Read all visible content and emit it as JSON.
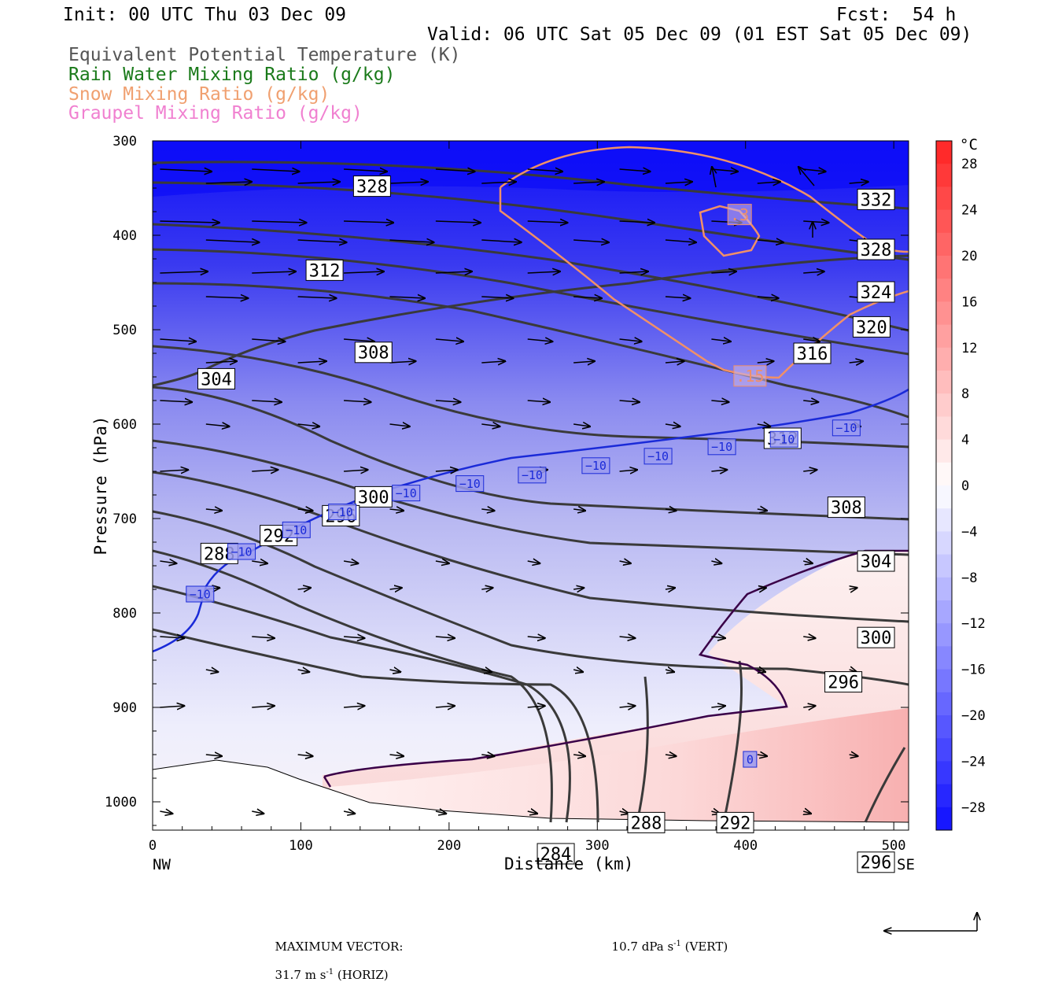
{
  "header": {
    "init": "Init: 00 UTC Thu 03 Dec 09",
    "fcst": "Fcst:  54 h",
    "valid": "Valid: 06 UTC Sat 05 Dec 09 (01 EST Sat 05 Dec 09)",
    "legend": [
      {
        "label": "Equivalent Potential Temperature (K)",
        "color": "#555555"
      },
      {
        "label": "Rain Water Mixing Ratio (g/kg)",
        "color": "#1a7a1a"
      },
      {
        "label": "Snow Mixing Ratio (g/kg)",
        "color": "#f0a070"
      },
      {
        "label": "Graupel Mixing Ratio (g/kg)",
        "color": "#f080d0"
      }
    ]
  },
  "chart_data": {
    "type": "contour",
    "xlabel": "Distance (km)",
    "ylabel": "Pressure (hPa)",
    "xlim": [
      0,
      510
    ],
    "ylim": [
      1030,
      300
    ],
    "x_ticks": [
      0,
      100,
      200,
      300,
      400,
      500
    ],
    "y_ticks": [
      300,
      400,
      500,
      600,
      700,
      800,
      900,
      1000
    ],
    "x_end_labels": {
      "left": "NW",
      "right": "SE"
    },
    "colorbar": {
      "unit": "°C",
      "ticks": [
        "28",
        "24",
        "20",
        "16",
        "12",
        "8",
        "4",
        "0",
        "−4",
        "−8",
        "−12",
        "−16",
        "−20",
        "−24",
        "−28"
      ],
      "min": -30,
      "max": 30
    },
    "theta_e_labels": [
      {
        "text": "328",
        "x": 148,
        "p": 348
      },
      {
        "text": "332",
        "x": 488,
        "p": 362
      },
      {
        "text": "328",
        "x": 488,
        "p": 415
      },
      {
        "text": "324",
        "x": 488,
        "p": 460
      },
      {
        "text": "320",
        "x": 485,
        "p": 497
      },
      {
        "text": "316",
        "x": 445,
        "p": 525
      },
      {
        "text": "312",
        "x": 116,
        "p": 437
      },
      {
        "text": "308",
        "x": 149,
        "p": 524
      },
      {
        "text": "304",
        "x": 43,
        "p": 552
      },
      {
        "text": "312",
        "x": 425,
        "p": 615
      },
      {
        "text": "308",
        "x": 468,
        "p": 688
      },
      {
        "text": "300",
        "x": 149,
        "p": 677
      },
      {
        "text": "296",
        "x": 127,
        "p": 697
      },
      {
        "text": "292",
        "x": 85,
        "p": 718
      },
      {
        "text": "288",
        "x": 45,
        "p": 737
      },
      {
        "text": "304",
        "x": 488,
        "p": 745
      },
      {
        "text": "300",
        "x": 488,
        "p": 826
      },
      {
        "text": "296",
        "x": 466,
        "p": 873
      },
      {
        "text": "288",
        "x": 333,
        "p": 1022
      },
      {
        "text": "292",
        "x": 393,
        "p": 1022
      },
      {
        "text": "284",
        "x": 272,
        "p": 1055
      },
      {
        "text": "296",
        "x": 488,
        "p": 1064
      }
    ],
    "temp_labels": [
      {
        "text": "−10",
        "x": 32,
        "p": 780
      },
      {
        "text": "−10",
        "x": 60,
        "p": 735
      },
      {
        "text": "−10",
        "x": 97,
        "p": 712
      },
      {
        "text": "−10",
        "x": 128,
        "p": 693
      },
      {
        "text": "−10",
        "x": 171,
        "p": 673
      },
      {
        "text": "−10",
        "x": 214,
        "p": 663
      },
      {
        "text": "−10",
        "x": 256,
        "p": 654
      },
      {
        "text": "−10",
        "x": 299,
        "p": 644
      },
      {
        "text": "−10",
        "x": 341,
        "p": 634
      },
      {
        "text": "−10",
        "x": 384,
        "p": 624
      },
      {
        "text": "−10",
        "x": 426,
        "p": 616
      },
      {
        "text": "−10",
        "x": 468,
        "p": 604
      },
      {
        "text": "0",
        "x": 403,
        "p": 955
      }
    ],
    "snow_labels": [
      {
        "text": ".3",
        "x": 396,
        "p": 378
      },
      {
        "text": ".15",
        "x": 403,
        "p": 549
      }
    ]
  },
  "footer": {
    "max_vector_label": "MAXIMUM VECTOR:",
    "horiz_value": "31.7 m s",
    "horiz_exp": "-1",
    "horiz_tag": " (HORIZ)",
    "vert_value": "10.7 dPa s",
    "vert_exp": "-1",
    "vert_tag": " (VERT)"
  }
}
